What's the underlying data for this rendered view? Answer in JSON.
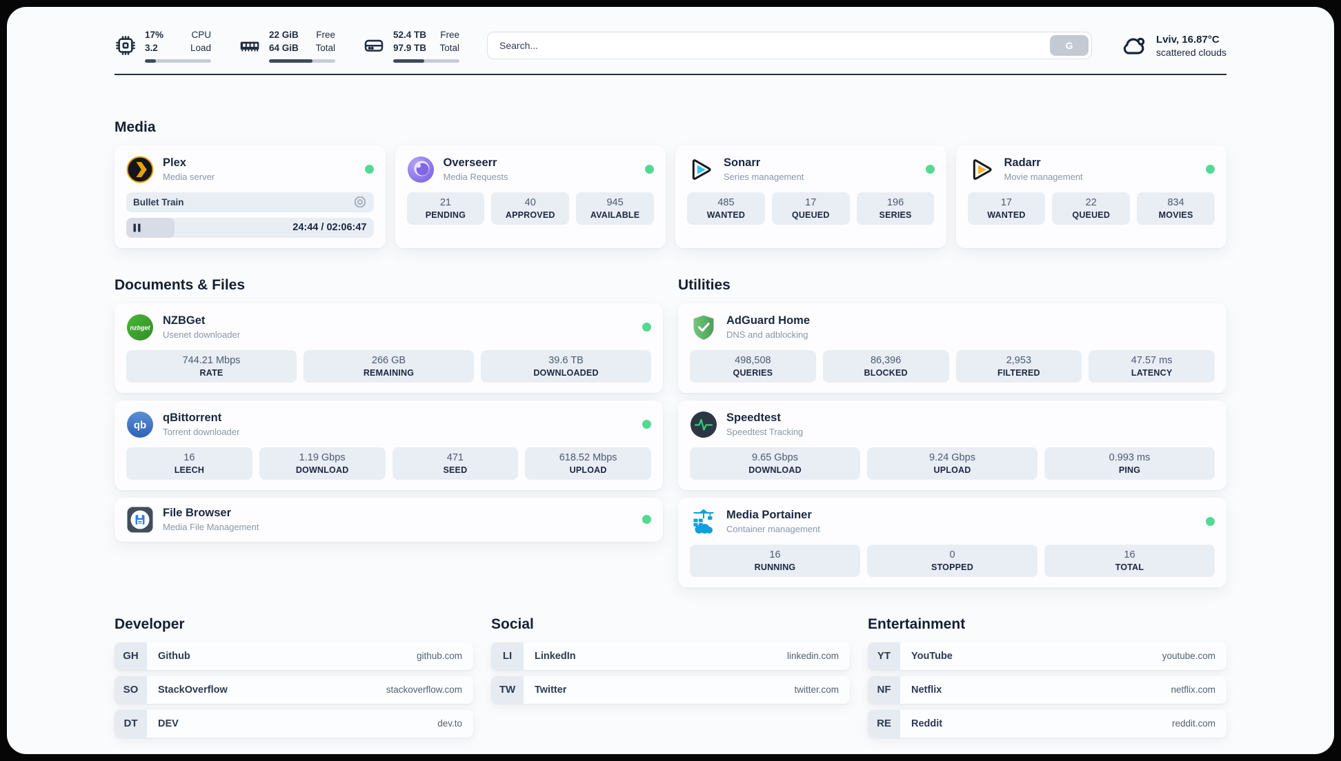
{
  "colors": {
    "status-green": "#54d993",
    "plex-amber": "#e8a00d",
    "sonarr-cyan": "#36c3f1",
    "radarr-amber": "#f7b328",
    "nzbget-green": "#3da232",
    "qbittorrent-blue": "#3d76c9",
    "adguard-green": "#63b168",
    "speedtest-pulse": "#2fd27c",
    "portainer-blue": "#119fdb",
    "filebrowser-blue": "#2f80e0",
    "overseerr-purple": "#7c63e4"
  },
  "header": {
    "stats": [
      {
        "value1": "17%",
        "value2": "3.2",
        "label1": "CPU",
        "label2": "Load",
        "progress": 17
      },
      {
        "value1": "22 GiB",
        "value2": "64 GiB",
        "label1": "Free",
        "label2": "Total",
        "progress": 66
      },
      {
        "value1": "52.4 TB",
        "value2": "97.9 TB",
        "label1": "Free",
        "label2": "Total",
        "progress": 47
      }
    ],
    "search": {
      "placeholder": "Search...",
      "button": "G"
    },
    "weather": {
      "title": "Lviv, 16.87°C",
      "subtitle": "scattered clouds"
    }
  },
  "media": {
    "title": "Media",
    "plex": {
      "name": "Plex",
      "desc": "Media server",
      "now_playing": "Bullet Train",
      "time": "24:44 / 02:06:47",
      "progress": 19.5
    },
    "overseerr": {
      "name": "Overseerr",
      "desc": "Media Requests",
      "stats": [
        {
          "value": "21",
          "label": "PENDING"
        },
        {
          "value": "40",
          "label": "APPROVED"
        },
        {
          "value": "945",
          "label": "AVAILABLE"
        }
      ]
    },
    "sonarr": {
      "name": "Sonarr",
      "desc": "Series management",
      "stats": [
        {
          "value": "485",
          "label": "WANTED"
        },
        {
          "value": "17",
          "label": "QUEUED"
        },
        {
          "value": "196",
          "label": "SERIES"
        }
      ]
    },
    "radarr": {
      "name": "Radarr",
      "desc": "Movie management",
      "stats": [
        {
          "value": "17",
          "label": "WANTED"
        },
        {
          "value": "22",
          "label": "QUEUED"
        },
        {
          "value": "834",
          "label": "MOVIES"
        }
      ]
    }
  },
  "documents": {
    "title": "Documents & Files",
    "nzbget": {
      "name": "NZBGet",
      "desc": "Usenet downloader",
      "icon_text": "nzbget",
      "stats": [
        {
          "value": "744.21 Mbps",
          "label": "RATE"
        },
        {
          "value": "266 GB",
          "label": "REMAINING"
        },
        {
          "value": "39.6 TB",
          "label": "DOWNLOADED"
        }
      ]
    },
    "qbittorrent": {
      "name": "qBittorrent",
      "desc": "Torrent downloader",
      "icon_text": "qb",
      "stats": [
        {
          "value": "16",
          "label": "LEECH"
        },
        {
          "value": "1.19 Gbps",
          "label": "DOWNLOAD"
        },
        {
          "value": "471",
          "label": "SEED"
        },
        {
          "value": "618.52 Mbps",
          "label": "UPLOAD"
        }
      ]
    },
    "filebrowser": {
      "name": "File Browser",
      "desc": "Media File Management"
    }
  },
  "utilities": {
    "title": "Utilities",
    "adguard": {
      "name": "AdGuard Home",
      "desc": "DNS and adblocking",
      "stats": [
        {
          "value": "498,508",
          "label": "QUERIES"
        },
        {
          "value": "86,396",
          "label": "BLOCKED"
        },
        {
          "value": "2,953",
          "label": "FILTERED"
        },
        {
          "value": "47.57 ms",
          "label": "LATENCY"
        }
      ]
    },
    "speedtest": {
      "name": "Speedtest",
      "desc": "Speedtest Tracking",
      "stats": [
        {
          "value": "9.65 Gbps",
          "label": "DOWNLOAD"
        },
        {
          "value": "9.24 Gbps",
          "label": "UPLOAD"
        },
        {
          "value": "0.993 ms",
          "label": "PING"
        }
      ]
    },
    "portainer": {
      "name": "Media Portainer",
      "desc": "Container management",
      "stats": [
        {
          "value": "16",
          "label": "RUNNING"
        },
        {
          "value": "0",
          "label": "STOPPED"
        },
        {
          "value": "16",
          "label": "TOTAL"
        }
      ]
    }
  },
  "links": {
    "developer": {
      "title": "Developer",
      "items": [
        {
          "abbr": "GH",
          "name": "Github",
          "url": "github.com"
        },
        {
          "abbr": "SO",
          "name": "StackOverflow",
          "url": "stackoverflow.com"
        },
        {
          "abbr": "DT",
          "name": "DEV",
          "url": "dev.to"
        }
      ]
    },
    "social": {
      "title": "Social",
      "items": [
        {
          "abbr": "LI",
          "name": "LinkedIn",
          "url": "linkedin.com"
        },
        {
          "abbr": "TW",
          "name": "Twitter",
          "url": "twitter.com"
        }
      ]
    },
    "entertainment": {
      "title": "Entertainment",
      "items": [
        {
          "abbr": "YT",
          "name": "YouTube",
          "url": "youtube.com"
        },
        {
          "abbr": "NF",
          "name": "Netflix",
          "url": "netflix.com"
        },
        {
          "abbr": "RE",
          "name": "Reddit",
          "url": "reddit.com"
        }
      ]
    }
  }
}
